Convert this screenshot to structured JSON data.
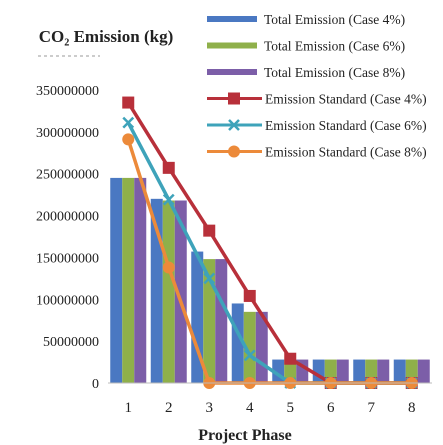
{
  "chart_data": {
    "type": "bar",
    "title": "CO₂ Emission (kg)",
    "xlabel": "Project Phase",
    "ylabel": "CO₂ Emission (kg)",
    "categories": [
      "1",
      "2",
      "3",
      "4",
      "5",
      "6",
      "7",
      "8"
    ],
    "ylim": [
      0,
      350000000
    ],
    "yticks": [
      "0",
      "50000000",
      "100000000",
      "150000000",
      "200000000",
      "250000000",
      "300000000",
      "350000000"
    ],
    "legend_position": "top-right",
    "series": [
      {
        "name": "Total Emission (Case 4%)",
        "kind": "bar",
        "color": "#4a78c2",
        "values": [
          245000000,
          220000000,
          157000000,
          95000000,
          28000000,
          28000000,
          28000000,
          28000000
        ]
      },
      {
        "name": "Total Emission (Case 6%)",
        "kind": "bar",
        "color": "#8fb04a",
        "values": [
          245000000,
          218000000,
          148000000,
          85000000,
          28000000,
          28000000,
          28000000,
          28000000
        ]
      },
      {
        "name": "Total Emission (Case 8%)",
        "kind": "bar",
        "color": "#7c5ea8",
        "values": [
          245000000,
          218000000,
          148000000,
          85000000,
          28000000,
          28000000,
          28000000,
          28000000
        ]
      },
      {
        "name": "Emission Standard (Case 4%)",
        "kind": "line",
        "marker": "square",
        "color": "#b8303a",
        "values": [
          335000000,
          257000000,
          182000000,
          104000000,
          29000000,
          0,
          0,
          0
        ]
      },
      {
        "name": "Emission Standard (Case 6%)",
        "kind": "line",
        "marker": "x",
        "color": "#3ea3ba",
        "values": [
          311000000,
          219000000,
          125000000,
          33000000,
          0,
          0,
          0,
          0
        ]
      },
      {
        "name": "Emission Standard (Case 8%)",
        "kind": "line",
        "marker": "circle",
        "color": "#ec8a3a",
        "values": [
          291000000,
          138000000,
          0,
          0,
          0,
          0,
          0,
          0
        ]
      }
    ]
  }
}
